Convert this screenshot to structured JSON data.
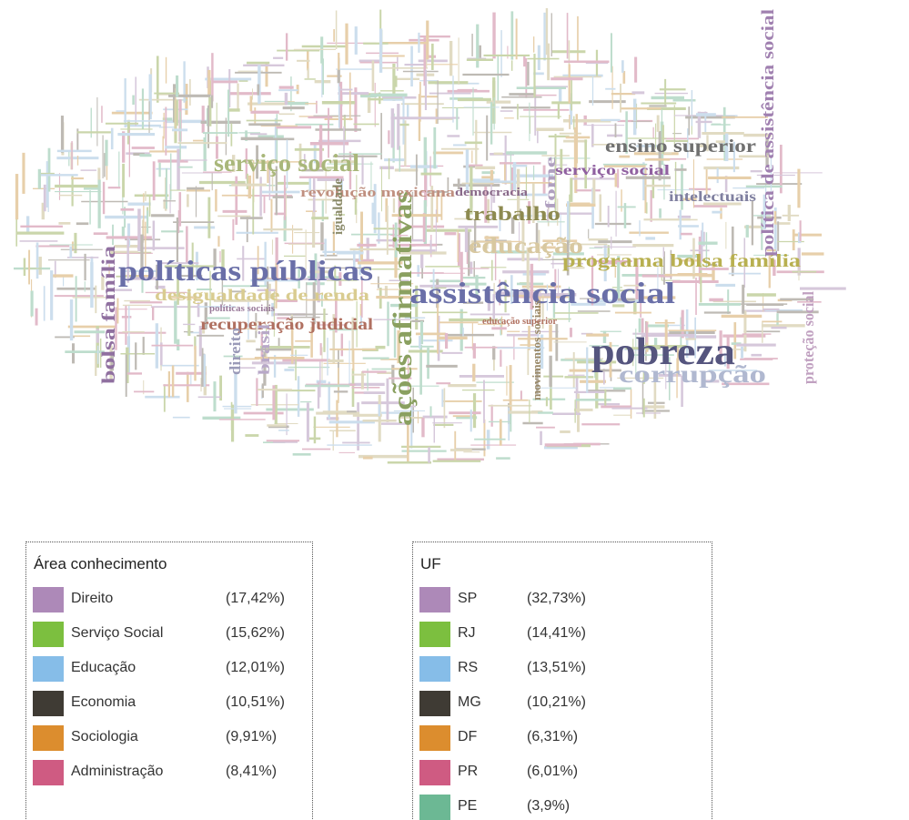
{
  "word_cloud": {
    "words": [
      "políticas públicas",
      "assistência social",
      "pobreza",
      "ações afirmativas",
      "serviço social",
      "trabalho",
      "educação",
      "programa bolsa família",
      "desigualdade de renda",
      "recuperação judicial",
      "ensino superior",
      "serviço social",
      "intelectuais",
      "corrupção",
      "bolsa família",
      "política de assistência social",
      "revolução mexicana",
      "democracia",
      "igualdade",
      "direito",
      "brasil",
      "proteção social",
      "movimentos sociais",
      "fome",
      "educação superior",
      "políticas sociais"
    ]
  },
  "legends": [
    {
      "title": "Área conhecimento",
      "items": [
        {
          "label": "Direito",
          "percent": "(17,42%)",
          "color": "#ad89b8"
        },
        {
          "label": "Serviço Social",
          "percent": "(15,62%)",
          "color": "#7cbf3f"
        },
        {
          "label": "Educação",
          "percent": "(12,01%)",
          "color": "#86bde8"
        },
        {
          "label": "Economia",
          "percent": "(10,51%)",
          "color": "#3f3b34"
        },
        {
          "label": "Sociologia",
          "percent": "(9,91%)",
          "color": "#dc8d2e"
        },
        {
          "label": "Administração",
          "percent": "(8,41%)",
          "color": "#cf5b82"
        }
      ]
    },
    {
      "title": "UF",
      "items": [
        {
          "label": "SP",
          "percent": "(32,73%)",
          "color": "#ad89b8"
        },
        {
          "label": "RJ",
          "percent": "(14,41%)",
          "color": "#7cbf3f"
        },
        {
          "label": "RS",
          "percent": "(13,51%)",
          "color": "#86bde8"
        },
        {
          "label": "MG",
          "percent": "(10,21%)",
          "color": "#3f3b34"
        },
        {
          "label": "DF",
          "percent": "(6,31%)",
          "color": "#dc8d2e"
        },
        {
          "label": "PR",
          "percent": "(6,01%)",
          "color": "#cf5b82"
        },
        {
          "label": "PE",
          "percent": "(3,9%)",
          "color": "#6cb894"
        }
      ]
    }
  ]
}
